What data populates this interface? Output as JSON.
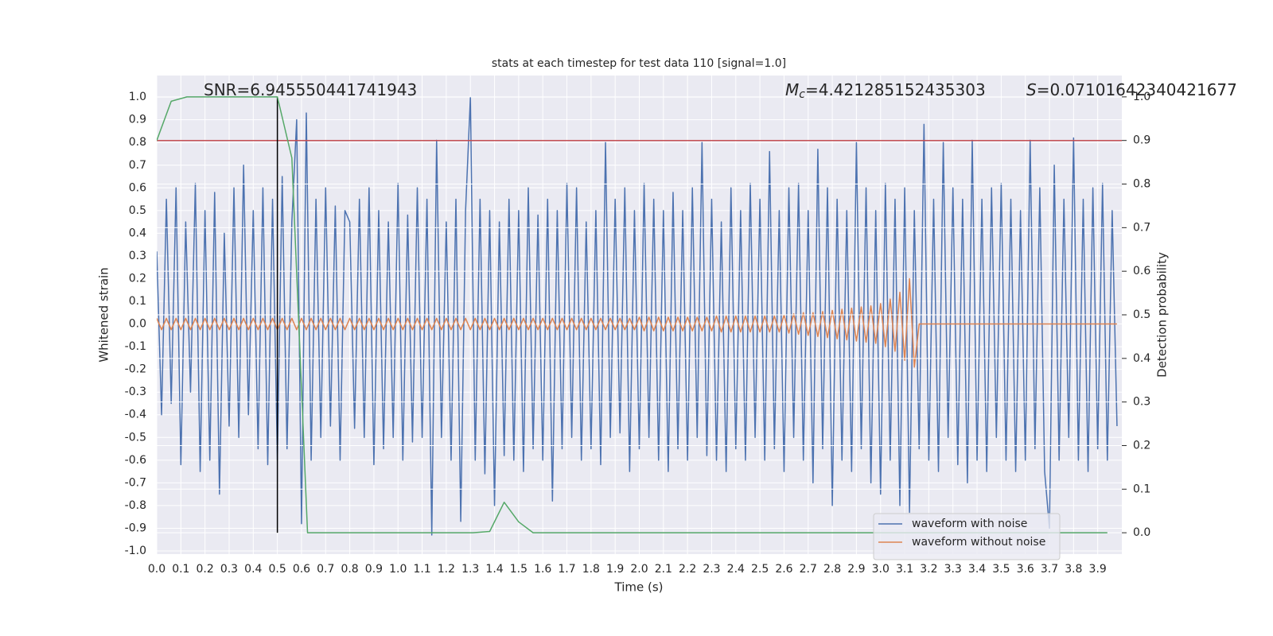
{
  "chart_data": {
    "type": "line",
    "title": "stats at each timestep for test data 110 [signal=1.0]",
    "xlabel": "Time (s)",
    "ylabel": "Whitened strain",
    "y2label": "Detection probability",
    "annotations": [
      {
        "text": "SNR=6.945550441741943"
      },
      {
        "symbol": "M",
        "subscript": "c",
        "text": "=4.421285152435303"
      },
      {
        "symbol": "S",
        "text": "=0.07101642340421677"
      }
    ],
    "xlim": [
      0,
      4.0
    ],
    "ylim": [
      -1.014,
      1.095
    ],
    "y2lim": [
      -0.049,
      1.049
    ],
    "xticks": [
      {
        "value": 0,
        "label": "0.0"
      },
      0.1,
      0.2,
      0.3,
      0.4,
      0.5,
      0.6,
      0.7,
      0.8,
      0.9,
      {
        "value": 1,
        "label": "1.0"
      },
      1.1,
      1.2,
      1.3,
      1.4,
      1.5,
      1.6,
      1.7,
      1.8,
      1.9,
      {
        "value": 2,
        "label": "2.0"
      },
      2.1,
      2.2,
      2.3,
      2.4,
      2.5,
      2.6,
      2.7,
      2.8,
      2.9,
      {
        "value": 3,
        "label": "3.0"
      },
      3.1,
      3.2,
      3.3,
      3.4,
      3.5,
      3.6,
      3.7,
      3.8,
      3.9
    ],
    "yticks": [
      {
        "value": -1,
        "label": "-1.0"
      },
      -0.9,
      -0.8,
      -0.7,
      -0.6,
      -0.5,
      -0.4,
      -0.3,
      -0.2,
      -0.1,
      {
        "value": 0,
        "label": "0.0"
      },
      0.1,
      0.2,
      0.3,
      0.4,
      0.5,
      0.6,
      0.7,
      0.8,
      0.9,
      {
        "value": 1,
        "label": "1.0"
      }
    ],
    "y2ticks": [
      {
        "value": 0,
        "label": "0.0"
      },
      0.1,
      0.2,
      0.3,
      0.4,
      0.5,
      0.6,
      0.7,
      0.8,
      0.9,
      {
        "value": 1,
        "label": "1.0"
      }
    ],
    "grid": true,
    "legend": "lower right",
    "x": [
      0,
      0.02,
      0.04,
      0.06,
      0.08,
      0.1,
      0.12,
      0.14,
      0.16,
      0.18,
      0.2,
      0.22,
      0.24,
      0.26,
      0.28,
      0.3,
      0.32,
      0.34,
      0.36,
      0.38,
      0.4,
      0.42,
      0.44,
      0.46,
      0.48,
      0.5,
      0.52,
      0.54,
      0.56,
      0.58,
      0.6,
      0.62,
      0.64,
      0.66,
      0.68,
      0.7,
      0.72,
      0.74,
      0.76,
      0.78,
      0.8,
      0.82,
      0.84,
      0.86,
      0.88,
      0.9,
      0.92,
      0.94,
      0.96,
      0.98,
      1,
      1.02,
      1.04,
      1.06,
      1.08,
      1.1,
      1.12,
      1.14,
      1.16,
      1.18,
      1.2,
      1.22,
      1.24,
      1.26,
      1.28,
      1.3,
      1.32,
      1.34,
      1.36,
      1.38,
      1.4,
      1.42,
      1.44,
      1.46,
      1.48,
      1.5,
      1.52,
      1.54,
      1.56,
      1.58,
      1.6,
      1.62,
      1.64,
      1.66,
      1.68,
      1.7,
      1.72,
      1.74,
      1.76,
      1.78,
      1.8,
      1.82,
      1.84,
      1.86,
      1.88,
      1.9,
      1.92,
      1.94,
      1.96,
      1.98,
      2,
      2.02,
      2.04,
      2.06,
      2.08,
      2.1,
      2.12,
      2.14,
      2.16,
      2.18,
      2.2,
      2.22,
      2.24,
      2.26,
      2.28,
      2.3,
      2.32,
      2.34,
      2.36,
      2.38,
      2.4,
      2.42,
      2.44,
      2.46,
      2.48,
      2.5,
      2.52,
      2.54,
      2.56,
      2.58,
      2.6,
      2.62,
      2.64,
      2.66,
      2.68,
      2.7,
      2.72,
      2.74,
      2.76,
      2.78,
      2.8,
      2.82,
      2.84,
      2.86,
      2.88,
      2.9,
      2.92,
      2.94,
      2.96,
      2.98,
      3,
      3.02,
      3.04,
      3.06,
      3.08,
      3.1,
      3.12,
      3.14,
      3.16,
      3.18,
      3.2,
      3.22,
      3.24,
      3.26,
      3.28,
      3.3,
      3.32,
      3.34,
      3.36,
      3.38,
      3.4,
      3.42,
      3.44,
      3.46,
      3.48,
      3.5,
      3.52,
      3.54,
      3.56,
      3.58,
      3.6,
      3.62,
      3.64,
      3.66,
      3.68,
      3.7,
      3.72,
      3.74,
      3.76,
      3.78,
      3.8,
      3.82,
      3.84,
      3.86,
      3.88,
      3.9,
      3.92,
      3.94,
      3.96,
      3.98
    ],
    "series": [
      {
        "name": "waveform with noise",
        "color": "#4c72b0",
        "values": [
          0.32,
          -0.4,
          0.55,
          -0.35,
          0.6,
          -0.62,
          0.45,
          -0.3,
          0.62,
          -0.65,
          0.5,
          -0.6,
          0.58,
          -0.75,
          0.4,
          -0.45,
          0.6,
          -0.5,
          0.7,
          -0.4,
          0.5,
          -0.55,
          0.6,
          -0.62,
          0.55,
          -0.6,
          0.65,
          -0.55,
          0.45,
          0.9,
          -0.88,
          0.93,
          -0.6,
          0.55,
          -0.5,
          0.6,
          -0.45,
          0.52,
          -0.6,
          0.5,
          0.45,
          -0.46,
          0.55,
          -0.5,
          0.6,
          -0.62,
          0.5,
          -0.55,
          0.45,
          -0.5,
          0.62,
          -0.6,
          0.48,
          -0.52,
          0.6,
          -0.5,
          0.55,
          -0.93,
          0.81,
          -0.5,
          0.45,
          -0.6,
          0.55,
          -0.87,
          0.5,
          1.0,
          -0.6,
          0.55,
          -0.66,
          0.5,
          -0.8,
          0.45,
          -0.58,
          0.55,
          -0.6,
          0.5,
          -0.65,
          0.6,
          -0.55,
          0.48,
          -0.6,
          0.55,
          -0.78,
          0.5,
          -0.55,
          0.62,
          -0.5,
          0.6,
          -0.6,
          0.45,
          -0.55,
          0.5,
          -0.62,
          0.8,
          -0.5,
          0.55,
          -0.48,
          0.6,
          -0.65,
          0.5,
          -0.55,
          0.62,
          -0.5,
          0.55,
          -0.6,
          0.5,
          -0.65,
          0.58,
          -0.55,
          0.5,
          -0.6,
          0.6,
          -0.5,
          0.8,
          -0.58,
          0.55,
          -0.6,
          0.45,
          -0.65,
          0.6,
          -0.55,
          0.5,
          -0.6,
          0.62,
          -0.5,
          0.55,
          -0.6,
          0.76,
          -0.55,
          0.5,
          -0.65,
          0.6,
          -0.5,
          0.62,
          -0.6,
          0.5,
          -0.7,
          0.77,
          -0.55,
          0.6,
          -0.8,
          0.55,
          -0.6,
          0.5,
          -0.65,
          0.8,
          -0.55,
          0.6,
          -0.7,
          0.5,
          -0.75,
          0.62,
          -0.6,
          0.55,
          -0.8,
          0.6,
          -0.83,
          0.5,
          -0.55,
          0.88,
          -0.6,
          0.55,
          -0.65,
          0.8,
          -0.5,
          0.6,
          -0.62,
          0.55,
          -0.7,
          0.81,
          -0.6,
          0.55,
          -0.65,
          0.6,
          -0.5,
          0.62,
          -0.6,
          0.55,
          -0.65,
          0.5,
          -0.6,
          0.81,
          -0.55,
          0.6,
          -0.65,
          -0.9,
          0.7,
          -0.6,
          0.55,
          -0.5,
          0.82,
          -0.6,
          0.55,
          -0.65,
          0.6,
          -0.55,
          0.62,
          -0.6,
          0.5,
          -0.45
        ]
      },
      {
        "name": "waveform without noise",
        "color": "#dd8452",
        "values": [
          0.025,
          -0.025,
          0.025,
          -0.025,
          0.025,
          -0.025,
          0.025,
          -0.025,
          0.025,
          -0.025,
          0.025,
          -0.025,
          0.025,
          -0.025,
          0.025,
          -0.025,
          0.025,
          -0.025,
          0.025,
          -0.025,
          0.025,
          -0.025,
          0.025,
          -0.025,
          0.025,
          -0.025,
          0.025,
          -0.025,
          0.025,
          -0.025,
          0.025,
          -0.025,
          0.025,
          -0.025,
          0.025,
          -0.025,
          0.025,
          -0.025,
          0.025,
          -0.025,
          0.025,
          -0.025,
          0.025,
          -0.025,
          0.025,
          -0.025,
          0.025,
          -0.025,
          0.025,
          -0.025,
          0.025,
          -0.025,
          0.025,
          -0.025,
          0.025,
          -0.025,
          0.025,
          -0.025,
          0.025,
          -0.025,
          0.025,
          -0.025,
          0.025,
          -0.025,
          0.025,
          -0.025,
          0.025,
          -0.025,
          0.025,
          -0.025,
          0.025,
          -0.025,
          0.025,
          -0.025,
          0.025,
          -0.025,
          0.025,
          -0.025,
          0.025,
          -0.025,
          0.025,
          -0.025,
          0.025,
          -0.025,
          0.025,
          -0.025,
          0.025,
          -0.025,
          0.025,
          -0.025,
          0.025,
          -0.025,
          0.025,
          -0.025,
          0.025,
          -0.025,
          0.025,
          -0.025,
          0.025,
          -0.025,
          0.03,
          -0.03,
          0.03,
          -0.03,
          0.03,
          -0.03,
          0.03,
          -0.03,
          0.03,
          -0.03,
          0.03,
          -0.03,
          0.03,
          -0.03,
          0.03,
          -0.03,
          0.035,
          -0.035,
          0.035,
          -0.035,
          0.035,
          -0.035,
          0.035,
          -0.035,
          0.035,
          -0.035,
          0.035,
          -0.035,
          0.035,
          -0.035,
          0.04,
          -0.04,
          0.045,
          -0.045,
          0.05,
          -0.05,
          0.05,
          -0.055,
          0.055,
          -0.06,
          0.06,
          -0.065,
          0.065,
          -0.07,
          0.07,
          -0.075,
          0.075,
          -0.08,
          0.08,
          -0.085,
          0.09,
          -0.1,
          0.11,
          -0.12,
          0.14,
          -0.16,
          0.2,
          -0.19,
          0,
          0,
          0,
          0,
          0,
          0,
          0,
          0,
          0,
          0,
          0,
          0,
          0,
          0,
          0,
          0,
          0,
          0,
          0,
          0,
          0,
          0,
          0,
          0,
          0,
          0,
          0,
          0,
          0,
          0,
          0,
          0,
          0,
          0,
          0,
          0,
          0,
          0,
          0,
          0,
          0,
          0
        ]
      },
      {
        "color": "#55a868",
        "axis": "y2",
        "x": [
          0,
          0.06,
          0.125,
          0.5,
          0.56,
          0.625,
          1.31,
          1.38,
          1.44,
          1.5,
          1.56,
          3.94
        ],
        "values": [
          0.9,
          0.99,
          1.0,
          1.0,
          0.86,
          0.0,
          0.0,
          0.003,
          0.07,
          0.025,
          0.0,
          0.0
        ]
      }
    ],
    "hline": {
      "value": 0.9,
      "axis": "y2",
      "color": "#c44e52"
    },
    "vline": {
      "x": 0.5,
      "ymin": 0,
      "ymax": 1,
      "axis": "y2",
      "color": "#000000"
    }
  }
}
